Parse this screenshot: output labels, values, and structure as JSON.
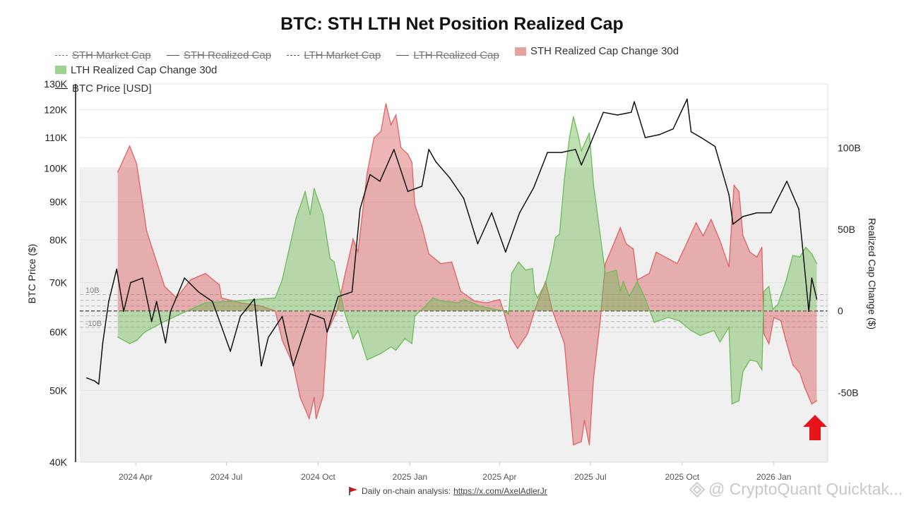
{
  "chart_data": {
    "type": "area",
    "title": "BTC: STH LTH Net Position Realized Cap",
    "left_axis": {
      "label": "BTC Price ($)",
      "scale": "log",
      "range": [
        40000,
        130000
      ],
      "ticks": [
        130000,
        120000,
        110000,
        100000,
        90000,
        80000,
        70000,
        60000,
        50000,
        40000
      ],
      "tick_labels": [
        "130K",
        "120K",
        "110K",
        "100K",
        "90K",
        "80K",
        "70K",
        "60K",
        "50K",
        "40K"
      ]
    },
    "right_axis": {
      "label": "Realized Cap Change ($)",
      "scale": "linear",
      "range": [
        -92.6,
        139
      ],
      "ticks": [
        100,
        50,
        0,
        -50
      ],
      "tick_labels": [
        "100B",
        "50B",
        "0",
        "-50B"
      ]
    },
    "x_axis": {
      "type": "date",
      "range": [
        "2024-02-05",
        "2026-02-24"
      ],
      "ticks": [
        "2024-04-01",
        "2024-07-01",
        "2024-10-01",
        "2025-01-01",
        "2025-04-01",
        "2025-07-01",
        "2025-10-01",
        "2026-01-01"
      ],
      "tick_labels": [
        "2024 Apr",
        "2024 Jul",
        "2024 Oct",
        "2025 Jan",
        "2025 Apr",
        "2025 Jul",
        "2025 Oct",
        "2026 Jan"
      ]
    },
    "reference_lines": [
      10,
      6.5,
      3,
      0,
      -3,
      -6.5,
      -10
    ],
    "reference_labels": {
      "upper": "10B",
      "lower": "-10B"
    },
    "grid": true,
    "legend_placement": "top",
    "legend": [
      {
        "name": "STH Market Cap",
        "style": "dash-dot",
        "hidden": true
      },
      {
        "name": "STH Realized Cap",
        "style": "line",
        "hidden": true
      },
      {
        "name": "LTH Market Cap",
        "style": "dash",
        "hidden": true
      },
      {
        "name": "LTH Realized Cap",
        "style": "line",
        "hidden": true
      },
      {
        "name": "STH Realized Cap Change 30d",
        "style": "area",
        "hidden": false,
        "color": "#e07070"
      },
      {
        "name": "LTH Realized Cap Change 30d",
        "style": "area",
        "hidden": false,
        "color": "#7cc46a"
      },
      {
        "name": "BTC Price [USD]",
        "style": "line",
        "hidden": false,
        "color": "#111111"
      }
    ],
    "series": [
      {
        "name": "STH Realized Cap Change 30d",
        "axis": "right",
        "unit": "B",
        "color": "#e06262",
        "fill": "rgba(214,80,80,0.42)",
        "points": [
          [
            "2024-03-14",
            85
          ],
          [
            "2024-03-26",
            101
          ],
          [
            "2024-04-02",
            90
          ],
          [
            "2024-04-12",
            49
          ],
          [
            "2024-04-21",
            32
          ],
          [
            "2024-04-30",
            15
          ],
          [
            "2024-05-12",
            8
          ],
          [
            "2024-05-26",
            19
          ],
          [
            "2024-06-10",
            23
          ],
          [
            "2024-06-24",
            16
          ],
          [
            "2024-06-26",
            8
          ],
          [
            "2024-07-15",
            5
          ],
          [
            "2024-08-05",
            3
          ],
          [
            "2024-08-19",
            0
          ],
          [
            "2024-08-26",
            -18
          ],
          [
            "2024-09-06",
            -33
          ],
          [
            "2024-09-13",
            -53
          ],
          [
            "2024-09-22",
            -66
          ],
          [
            "2024-09-27",
            -53
          ],
          [
            "2024-09-29",
            -66
          ],
          [
            "2024-10-06",
            -52
          ],
          [
            "2024-10-10",
            -13
          ],
          [
            "2024-10-20",
            0
          ],
          [
            "2024-10-29",
            25
          ],
          [
            "2024-11-05",
            44
          ],
          [
            "2024-11-10",
            36
          ],
          [
            "2024-11-19",
            84
          ],
          [
            "2024-11-26",
            106
          ],
          [
            "2024-12-03",
            110
          ],
          [
            "2024-12-08",
            127
          ],
          [
            "2024-12-13",
            114
          ],
          [
            "2024-12-18",
            120
          ],
          [
            "2024-12-23",
            100
          ],
          [
            "2024-12-30",
            96
          ],
          [
            "2025-01-03",
            91
          ],
          [
            "2025-01-06",
            65
          ],
          [
            "2025-01-13",
            52
          ],
          [
            "2025-01-20",
            35
          ],
          [
            "2025-02-01",
            29
          ],
          [
            "2025-02-12",
            30
          ],
          [
            "2025-02-21",
            12
          ],
          [
            "2025-03-07",
            6
          ],
          [
            "2025-03-19",
            5
          ],
          [
            "2025-04-01",
            7
          ],
          [
            "2025-04-05",
            0
          ],
          [
            "2025-04-12",
            -16
          ],
          [
            "2025-04-19",
            -23
          ],
          [
            "2025-04-29",
            -14
          ],
          [
            "2025-05-06",
            0
          ],
          [
            "2025-05-17",
            18
          ],
          [
            "2025-05-24",
            0
          ],
          [
            "2025-06-05",
            -20
          ],
          [
            "2025-06-14",
            -82
          ],
          [
            "2025-06-22",
            -80
          ],
          [
            "2025-06-25",
            -67
          ],
          [
            "2025-06-30",
            -82
          ],
          [
            "2025-07-04",
            -42
          ],
          [
            "2025-07-11",
            -5
          ],
          [
            "2025-07-16",
            29
          ],
          [
            "2025-07-23",
            39
          ],
          [
            "2025-07-31",
            51
          ],
          [
            "2025-08-06",
            41
          ],
          [
            "2025-08-13",
            38
          ],
          [
            "2025-08-17",
            19
          ],
          [
            "2025-08-29",
            23
          ],
          [
            "2025-09-05",
            36
          ],
          [
            "2025-09-17",
            32
          ],
          [
            "2025-09-26",
            29
          ],
          [
            "2025-10-03",
            38
          ],
          [
            "2025-10-15",
            54
          ],
          [
            "2025-10-22",
            46
          ],
          [
            "2025-10-30",
            56
          ],
          [
            "2025-11-08",
            43
          ],
          [
            "2025-11-17",
            27
          ],
          [
            "2025-11-22",
            77
          ],
          [
            "2025-11-27",
            73
          ],
          [
            "2025-12-01",
            46
          ],
          [
            "2025-12-08",
            36
          ],
          [
            "2025-12-15",
            33
          ],
          [
            "2025-12-20",
            39
          ],
          [
            "2025-12-22",
            -14
          ],
          [
            "2025-12-27",
            -20
          ],
          [
            "2026-01-01",
            -4
          ],
          [
            "2026-01-08",
            -6
          ],
          [
            "2026-01-13",
            -18
          ],
          [
            "2026-01-20",
            -33
          ],
          [
            "2026-01-27",
            -38
          ],
          [
            "2026-02-01",
            -47
          ],
          [
            "2026-02-08",
            -57
          ],
          [
            "2026-02-13",
            -55
          ]
        ]
      },
      {
        "name": "LTH Realized Cap Change 30d",
        "axis": "right",
        "unit": "B",
        "color": "#6cbc58",
        "fill": "rgba(110,185,85,0.45)",
        "points": [
          [
            "2024-03-14",
            -16
          ],
          [
            "2024-03-26",
            -20
          ],
          [
            "2024-04-02",
            -18
          ],
          [
            "2024-04-10",
            -13
          ],
          [
            "2024-04-28",
            -7
          ],
          [
            "2024-05-19",
            -1
          ],
          [
            "2024-06-10",
            5
          ],
          [
            "2024-07-08",
            6
          ],
          [
            "2024-07-29",
            7
          ],
          [
            "2024-08-19",
            8
          ],
          [
            "2024-08-26",
            19
          ],
          [
            "2024-09-02",
            38
          ],
          [
            "2024-09-09",
            57
          ],
          [
            "2024-09-18",
            73
          ],
          [
            "2024-09-23",
            59
          ],
          [
            "2024-09-27",
            75
          ],
          [
            "2024-10-06",
            59
          ],
          [
            "2024-10-13",
            32
          ],
          [
            "2024-10-17",
            30
          ],
          [
            "2024-10-22",
            15
          ],
          [
            "2024-10-27",
            0
          ],
          [
            "2024-11-05",
            -17
          ],
          [
            "2024-11-10",
            -12
          ],
          [
            "2024-11-19",
            -30
          ],
          [
            "2024-12-03",
            -26
          ],
          [
            "2024-12-13",
            -22
          ],
          [
            "2024-12-18",
            -24
          ],
          [
            "2024-12-27",
            -17
          ],
          [
            "2025-01-03",
            -20
          ],
          [
            "2025-01-06",
            -3
          ],
          [
            "2025-01-15",
            2
          ],
          [
            "2025-01-24",
            8
          ],
          [
            "2025-02-02",
            6
          ],
          [
            "2025-02-19",
            5
          ],
          [
            "2025-02-24",
            7
          ],
          [
            "2025-03-12",
            3
          ],
          [
            "2025-03-27",
            1
          ],
          [
            "2025-04-05",
            0
          ],
          [
            "2025-04-10",
            -2
          ],
          [
            "2025-04-13",
            23
          ],
          [
            "2025-04-20",
            30
          ],
          [
            "2025-04-27",
            25
          ],
          [
            "2025-05-04",
            26
          ],
          [
            "2025-05-06",
            12
          ],
          [
            "2025-05-09",
            8
          ],
          [
            "2025-05-17",
            17
          ],
          [
            "2025-05-22",
            29
          ],
          [
            "2025-05-27",
            45
          ],
          [
            "2025-05-31",
            47
          ],
          [
            "2025-06-05",
            81
          ],
          [
            "2025-06-10",
            106
          ],
          [
            "2025-06-14",
            119
          ],
          [
            "2025-06-19",
            107
          ],
          [
            "2025-06-22",
            98
          ],
          [
            "2025-06-30",
            109
          ],
          [
            "2025-07-04",
            78
          ],
          [
            "2025-07-09",
            55
          ],
          [
            "2025-07-16",
            23
          ],
          [
            "2025-07-27",
            25
          ],
          [
            "2025-07-31",
            12
          ],
          [
            "2025-08-03",
            18
          ],
          [
            "2025-08-09",
            9
          ],
          [
            "2025-08-17",
            18
          ],
          [
            "2025-08-24",
            9
          ],
          [
            "2025-09-03",
            -7
          ],
          [
            "2025-09-17",
            -4
          ],
          [
            "2025-09-28",
            -6
          ],
          [
            "2025-10-10",
            -12
          ],
          [
            "2025-10-19",
            -15
          ],
          [
            "2025-11-02",
            -12
          ],
          [
            "2025-11-08",
            -19
          ],
          [
            "2025-11-17",
            -10
          ],
          [
            "2025-11-20",
            -57
          ],
          [
            "2025-11-27",
            -55
          ],
          [
            "2025-12-01",
            -37
          ],
          [
            "2025-12-08",
            -30
          ],
          [
            "2025-12-15",
            -31
          ],
          [
            "2025-12-20",
            -36
          ],
          [
            "2025-12-22",
            12
          ],
          [
            "2025-12-27",
            15
          ],
          [
            "2025-12-31",
            1
          ],
          [
            "2026-01-05",
            4
          ],
          [
            "2026-01-13",
            18
          ],
          [
            "2026-01-20",
            34
          ],
          [
            "2026-01-27",
            33
          ],
          [
            "2026-02-02",
            39
          ],
          [
            "2026-02-08",
            35
          ],
          [
            "2026-02-13",
            29
          ]
        ]
      },
      {
        "name": "BTC Price [USD]",
        "axis": "left",
        "color": "#111111",
        "points": [
          [
            "2024-02-12",
            52000
          ],
          [
            "2024-02-20",
            51500
          ],
          [
            "2024-02-24",
            51000
          ],
          [
            "2024-02-28",
            58000
          ],
          [
            "2024-03-05",
            66000
          ],
          [
            "2024-03-13",
            73000
          ],
          [
            "2024-03-20",
            64000
          ],
          [
            "2024-03-27",
            70000
          ],
          [
            "2024-04-08",
            71000
          ],
          [
            "2024-04-17",
            62000
          ],
          [
            "2024-04-22",
            66000
          ],
          [
            "2024-05-01",
            58000
          ],
          [
            "2024-05-06",
            64000
          ],
          [
            "2024-05-20",
            71000
          ],
          [
            "2024-06-03",
            68000
          ],
          [
            "2024-06-17",
            66000
          ],
          [
            "2024-07-05",
            56500
          ],
          [
            "2024-07-15",
            63000
          ],
          [
            "2024-07-29",
            66500
          ],
          [
            "2024-08-05",
            54000
          ],
          [
            "2024-08-12",
            59000
          ],
          [
            "2024-08-26",
            63000
          ],
          [
            "2024-09-06",
            54000
          ],
          [
            "2024-09-23",
            63500
          ],
          [
            "2024-10-07",
            62500
          ],
          [
            "2024-10-10",
            60000
          ],
          [
            "2024-10-21",
            67000
          ],
          [
            "2024-11-04",
            68000
          ],
          [
            "2024-11-12",
            88000
          ],
          [
            "2024-11-22",
            98000
          ],
          [
            "2024-12-02",
            96000
          ],
          [
            "2024-12-16",
            106000
          ],
          [
            "2024-12-30",
            93000
          ],
          [
            "2025-01-13",
            94500
          ],
          [
            "2025-01-20",
            106000
          ],
          [
            "2025-01-27",
            102000
          ],
          [
            "2025-02-10",
            97000
          ],
          [
            "2025-02-24",
            91000
          ],
          [
            "2025-03-10",
            79000
          ],
          [
            "2025-03-24",
            87000
          ],
          [
            "2025-04-07",
            77000
          ],
          [
            "2025-04-21",
            87000
          ],
          [
            "2025-05-05",
            94000
          ],
          [
            "2025-05-19",
            105000
          ],
          [
            "2025-06-02",
            105000
          ],
          [
            "2025-06-16",
            106000
          ],
          [
            "2025-06-22",
            101000
          ],
          [
            "2025-06-30",
            107000
          ],
          [
            "2025-07-14",
            119000
          ],
          [
            "2025-07-28",
            118000
          ],
          [
            "2025-08-11",
            119000
          ],
          [
            "2025-08-14",
            123000
          ],
          [
            "2025-08-25",
            110000
          ],
          [
            "2025-09-08",
            111000
          ],
          [
            "2025-09-22",
            113000
          ],
          [
            "2025-10-06",
            124000
          ],
          [
            "2025-10-10",
            112000
          ],
          [
            "2025-10-20",
            110000
          ],
          [
            "2025-11-03",
            107000
          ],
          [
            "2025-11-17",
            92000
          ],
          [
            "2025-11-21",
            84000
          ],
          [
            "2025-12-01",
            86000
          ],
          [
            "2025-12-15",
            87000
          ],
          [
            "2025-12-29",
            87000
          ],
          [
            "2026-01-14",
            96000
          ],
          [
            "2026-01-26",
            88000
          ],
          [
            "2026-02-05",
            64000
          ],
          [
            "2026-02-08",
            71000
          ],
          [
            "2026-02-13",
            66500
          ]
        ]
      }
    ],
    "annotation": {
      "type": "arrow-up",
      "color": "#e8141c"
    }
  },
  "footer": {
    "text": "Daily on-chain analysis:",
    "link": "https://x.com/AxelAdlerJr"
  },
  "watermark": "@ CryptoQuant Quicktak..."
}
